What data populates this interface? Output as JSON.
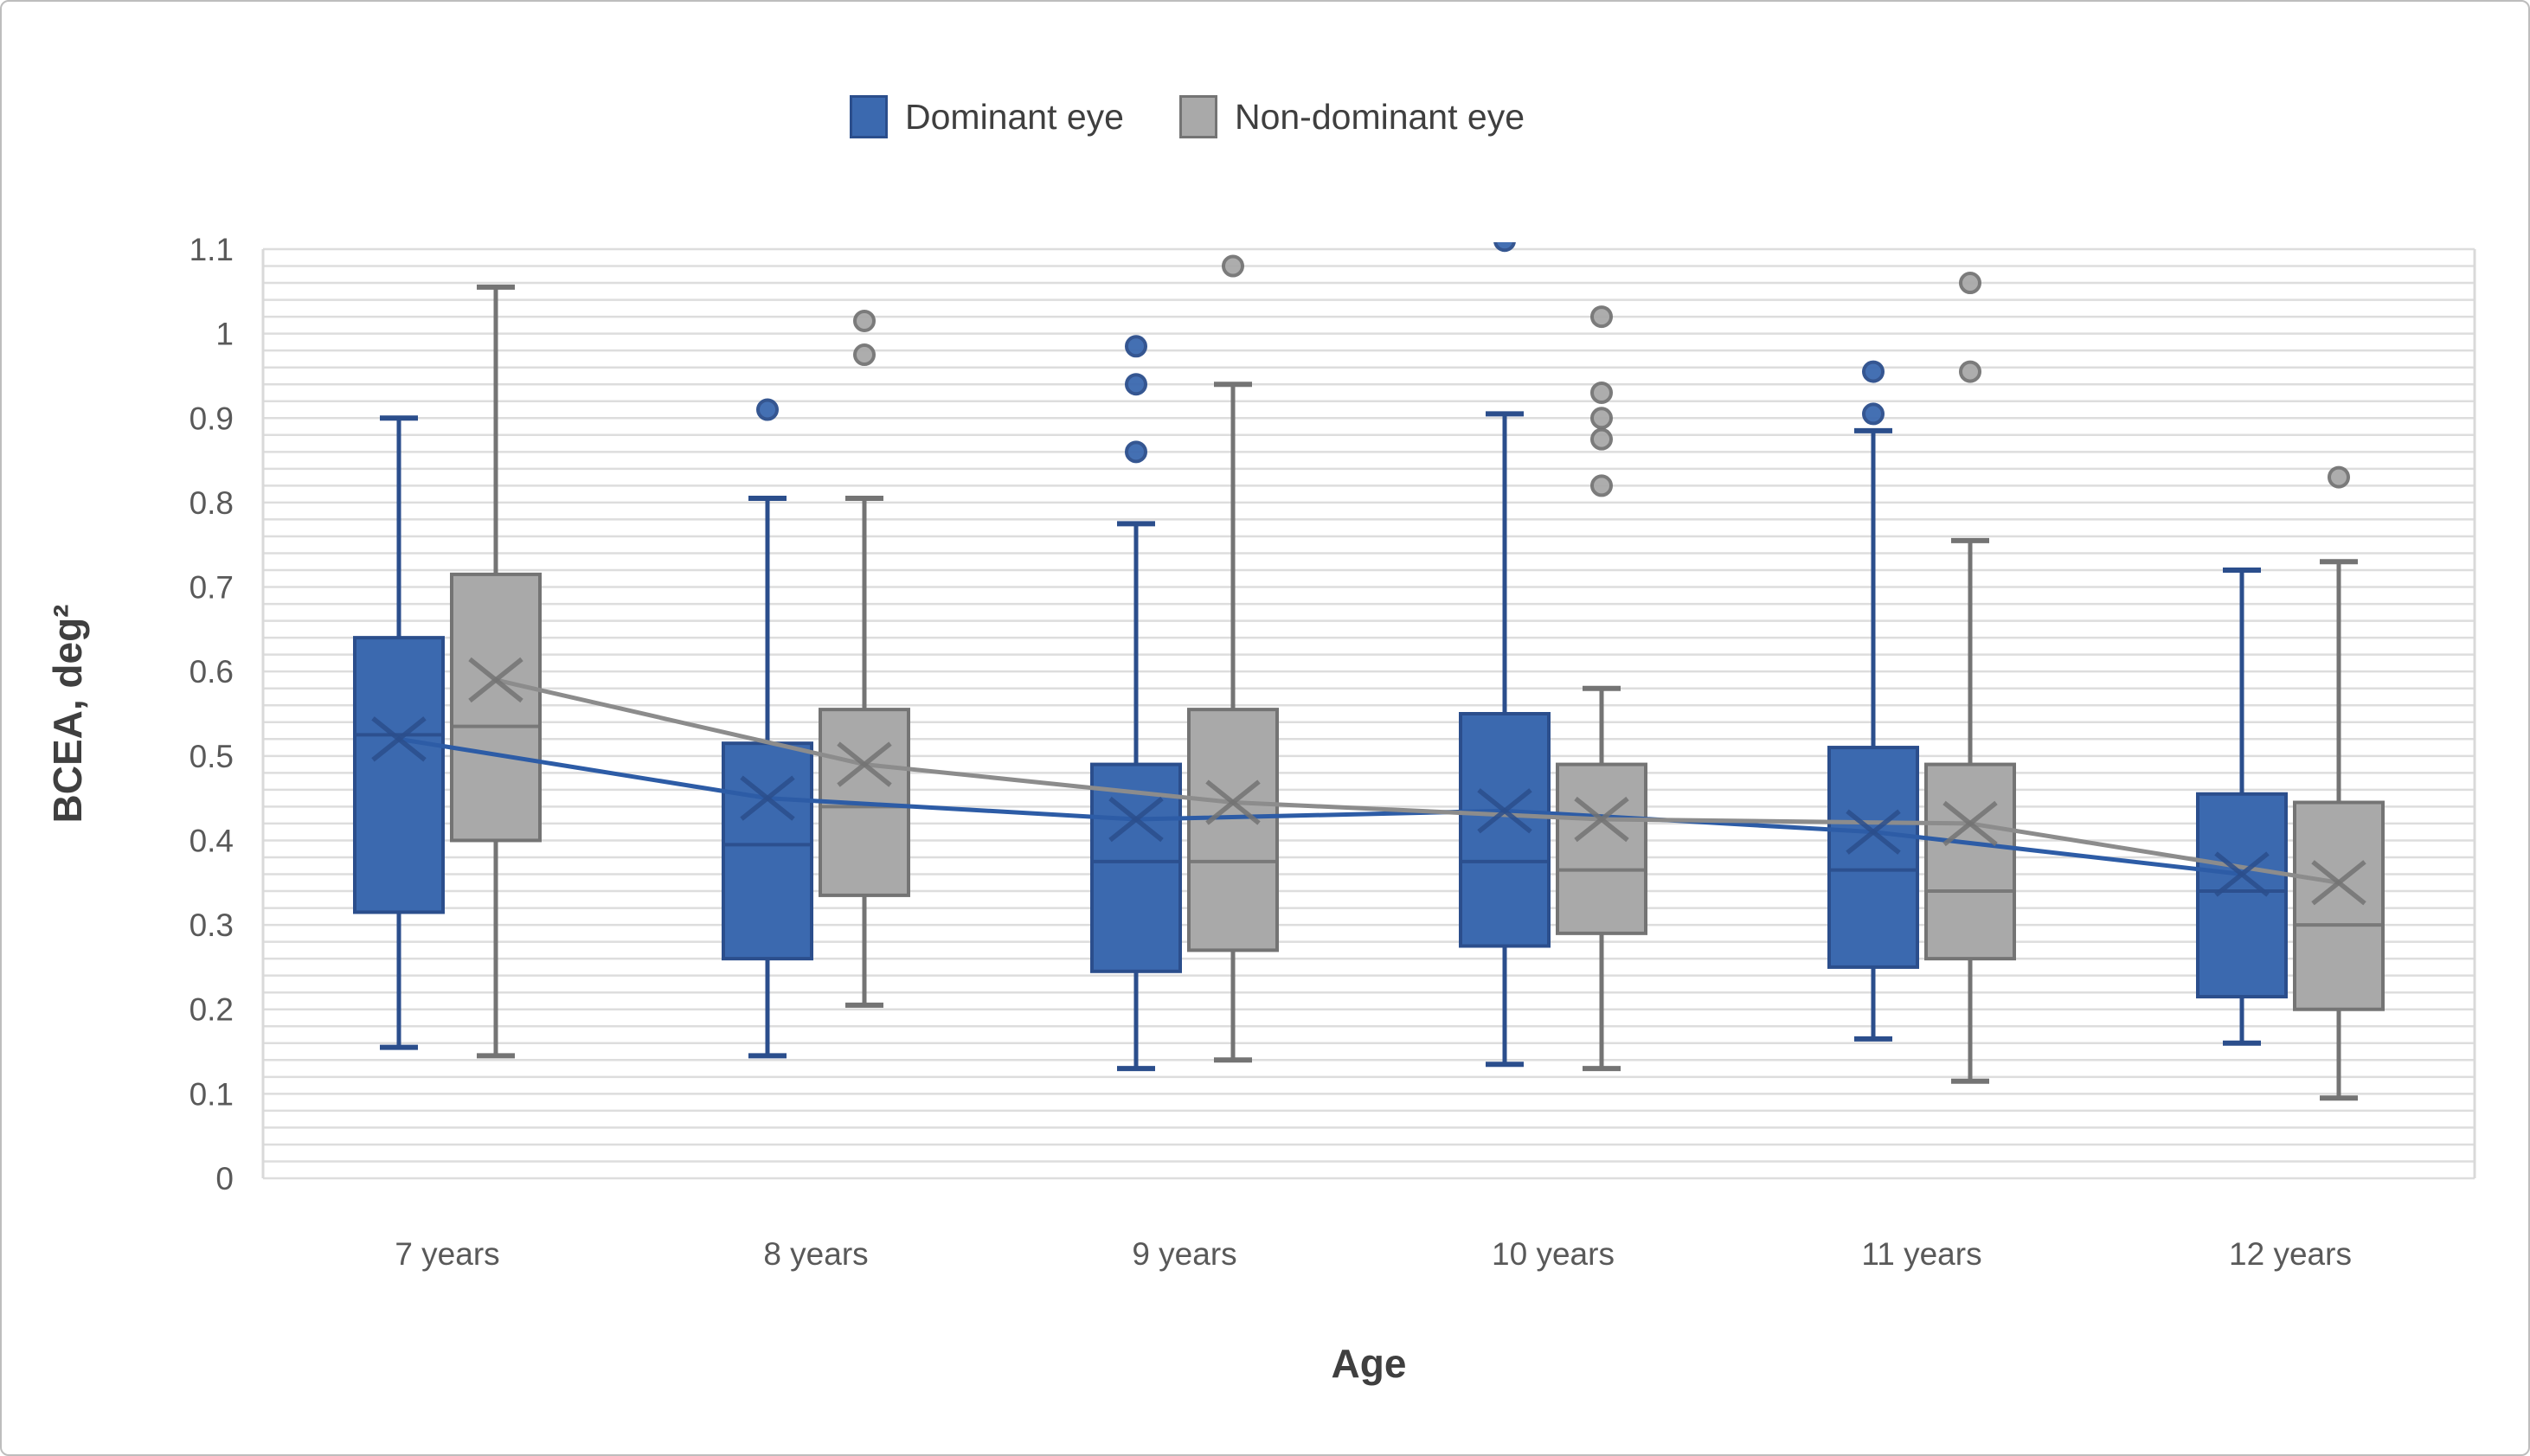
{
  "figure": {
    "background": "#FFFFFF",
    "border_color": "#BDBDBD"
  },
  "legend": {
    "items": [
      {
        "label": "Dominant eye",
        "swatch_fill": "#3B69AF",
        "swatch_stroke": "#2B4E8C"
      },
      {
        "label": "Non-dominant eye",
        "swatch_fill": "#A9A9A9",
        "swatch_stroke": "#747474"
      }
    ]
  },
  "chart_data": {
    "type": "boxplot",
    "title": "",
    "xlabel": "Age",
    "ylabel": "BCEA, deg²",
    "categories": [
      "7 years",
      "8 years",
      "9 years",
      "10 years",
      "11 years",
      "12 years"
    ],
    "y_axis": {
      "min": 0,
      "max": 1.1,
      "major_tick_step": 0.1,
      "minor_grid_step": 0.02,
      "tick_labels": [
        "0",
        "0.1",
        "0.2",
        "0.3",
        "0.4",
        "0.5",
        "0.6",
        "0.7",
        "0.8",
        "0.9",
        "1",
        "1.1"
      ],
      "grid_color": "#DDDDDD",
      "label_color": "#595959"
    },
    "grid": "horizontal-minor",
    "legend_position": "top",
    "marker_notes": "x marks = series means connected by trend lines; dots = outliers",
    "series": [
      {
        "name": "Dominant eye",
        "fill": "#3B69AF",
        "stroke": "#2B4E8C",
        "mean_line_color": "#2D5CA6",
        "boxes": [
          {
            "category": "7 years",
            "whisker_low": 0.155,
            "q1": 0.315,
            "median": 0.525,
            "q3": 0.64,
            "whisker_high": 0.9,
            "mean": 0.52,
            "outliers": []
          },
          {
            "category": "8 years",
            "whisker_low": 0.145,
            "q1": 0.26,
            "median": 0.395,
            "q3": 0.515,
            "whisker_high": 0.805,
            "mean": 0.45,
            "outliers": [
              0.91
            ]
          },
          {
            "category": "9 years",
            "whisker_low": 0.13,
            "q1": 0.245,
            "median": 0.375,
            "q3": 0.49,
            "whisker_high": 0.775,
            "mean": 0.425,
            "outliers": [
              0.86,
              0.94,
              0.985
            ]
          },
          {
            "category": "10 years",
            "whisker_low": 0.135,
            "q1": 0.275,
            "median": 0.375,
            "q3": 0.55,
            "whisker_high": 0.905,
            "mean": 0.435,
            "outliers": [
              1.11
            ]
          },
          {
            "category": "11 years",
            "whisker_low": 0.165,
            "q1": 0.25,
            "median": 0.365,
            "q3": 0.51,
            "whisker_high": 0.885,
            "mean": 0.41,
            "outliers": [
              0.905,
              0.955
            ]
          },
          {
            "category": "12 years",
            "whisker_low": 0.16,
            "q1": 0.215,
            "median": 0.34,
            "q3": 0.455,
            "whisker_high": 0.72,
            "mean": 0.36,
            "outliers": []
          }
        ]
      },
      {
        "name": "Non-dominant eye",
        "fill": "#A9A9A9",
        "stroke": "#747474",
        "mean_line_color": "#8C8C8C",
        "boxes": [
          {
            "category": "7 years",
            "whisker_low": 0.145,
            "q1": 0.4,
            "median": 0.535,
            "q3": 0.715,
            "whisker_high": 1.055,
            "mean": 0.59,
            "outliers": []
          },
          {
            "category": "8 years",
            "whisker_low": 0.205,
            "q1": 0.335,
            "median": 0.44,
            "q3": 0.555,
            "whisker_high": 0.805,
            "mean": 0.49,
            "outliers": [
              0.975,
              1.015
            ]
          },
          {
            "category": "9 years",
            "whisker_low": 0.14,
            "q1": 0.27,
            "median": 0.375,
            "q3": 0.555,
            "whisker_high": 0.94,
            "mean": 0.445,
            "outliers": [
              1.08
            ]
          },
          {
            "category": "10 years",
            "whisker_low": 0.13,
            "q1": 0.29,
            "median": 0.365,
            "q3": 0.49,
            "whisker_high": 0.58,
            "mean": 0.425,
            "outliers": [
              0.82,
              0.875,
              0.9,
              0.93,
              1.02
            ]
          },
          {
            "category": "11 years",
            "whisker_low": 0.115,
            "q1": 0.26,
            "median": 0.34,
            "q3": 0.49,
            "whisker_high": 0.755,
            "mean": 0.42,
            "outliers": [
              0.955,
              1.06
            ]
          },
          {
            "category": "12 years",
            "whisker_low": 0.095,
            "q1": 0.2,
            "median": 0.3,
            "q3": 0.445,
            "whisker_high": 0.73,
            "mean": 0.35,
            "outliers": [
              0.83
            ]
          }
        ]
      }
    ]
  }
}
